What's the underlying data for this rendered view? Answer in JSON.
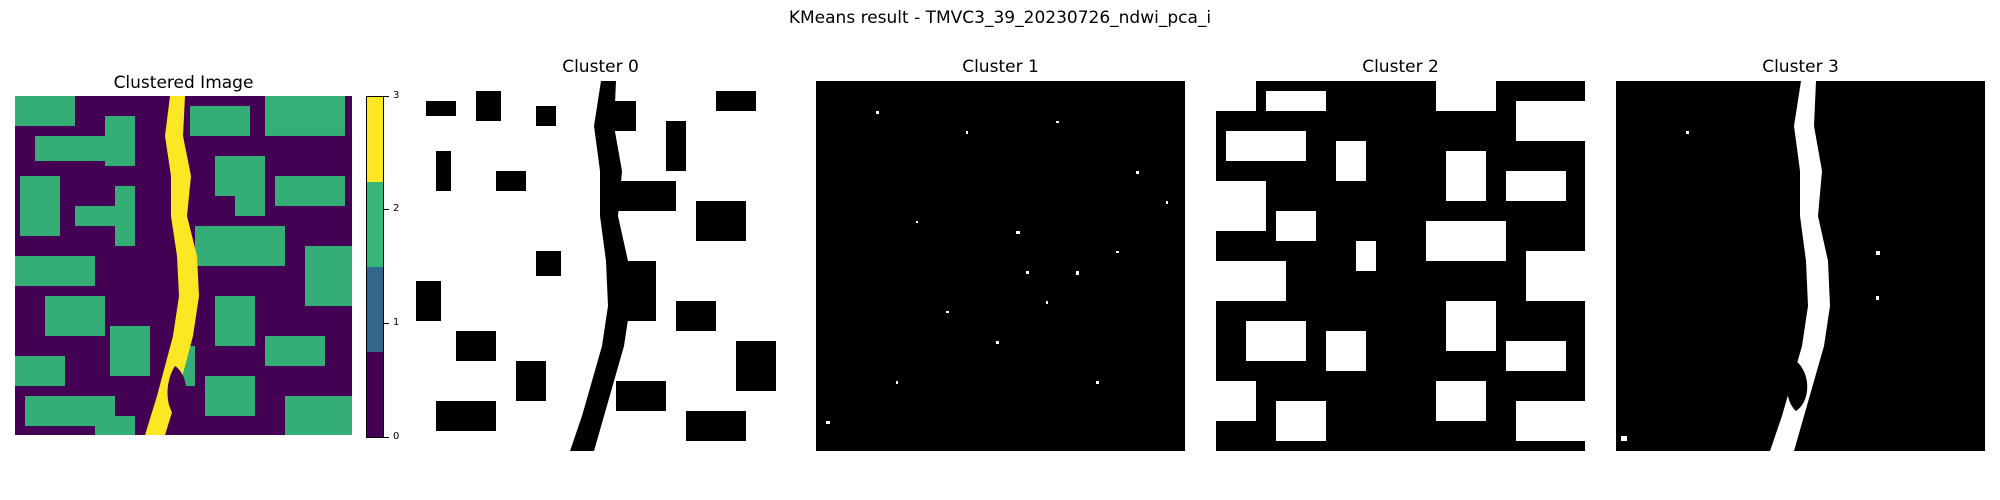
{
  "title": "KMeans result - TMVC3_39_20230726_ndwi_pca_i",
  "panels": [
    {
      "title": "Clustered Image"
    },
    {
      "title": "Cluster 0"
    },
    {
      "title": "Cluster 1"
    },
    {
      "title": "Cluster 2"
    },
    {
      "title": "Cluster 3"
    }
  ],
  "colorbar": {
    "ticks": [
      "0",
      "1",
      "2",
      "3"
    ],
    "colors": [
      "#440154",
      "#31688e",
      "#35b779",
      "#fde725"
    ]
  },
  "colors": {
    "cluster_background": "#000000",
    "cluster_foreground": "#ffffff"
  }
}
